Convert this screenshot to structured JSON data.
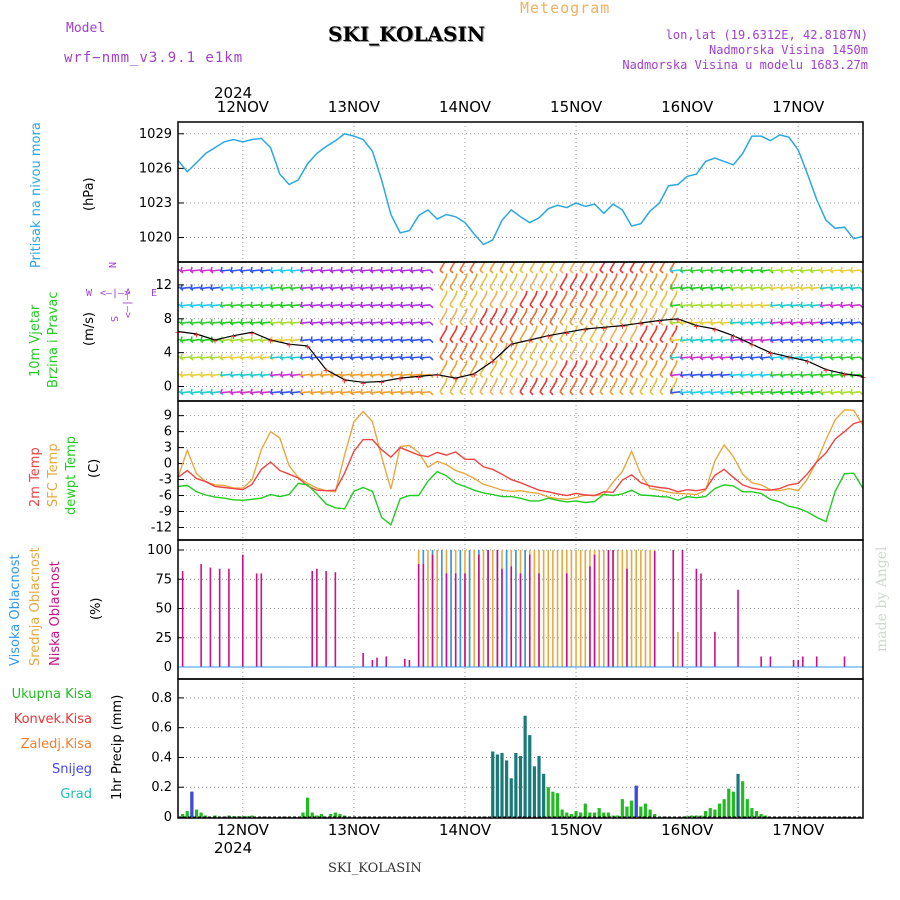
{
  "header": {
    "title": "SKI_KOLASIN",
    "meteogram": "Meteogram",
    "model_label": "Model",
    "model_value": "wrf−nmm_v3.9.1  e1km",
    "lonlat": "lon,lat (19.6312E, 42.8187N)",
    "elevation": "Nadmorska Visina 1450m",
    "model_elevation": "Nadmorska Visina u modelu 1683.27m",
    "credit": "made by Angel",
    "footer": "SKI_KOLASIN"
  },
  "time_axis": {
    "year": "2024",
    "dates": [
      "12NOV",
      "13NOV",
      "14NOV",
      "15NOV",
      "16NOV",
      "17NOV"
    ]
  },
  "panel_labels": {
    "pressure": [
      "Pritisak na nivou mora",
      "(hPa)"
    ],
    "wind": [
      "10m Vjetar",
      "Brzina i Pravac",
      "(m/s)"
    ],
    "compass": {
      "n": "N",
      "s": "S",
      "e": "E",
      "w": "W",
      "arrow": "<—|—>"
    },
    "temp": [
      "2m Temp",
      "SFC Temp",
      "dewpt Temp",
      "(C)"
    ],
    "cloud": [
      "Visoka Oblacnost",
      "Srednja Oblacnost",
      "Niska Oblacnost",
      "(%)"
    ],
    "precip": [
      "Ukupna Kisa",
      "Konvek.Kisa",
      "Zaledj.Kisa",
      "Snijeg",
      "Grad",
      "1hr Precip (mm)"
    ]
  },
  "colors": {
    "pressure": "#2aa8e0",
    "temp2m": "#ee4444",
    "sfc": "#e8a840",
    "dewpt": "#22cc22",
    "high_cloud": "#3399ee",
    "mid_cloud": "#e8a840",
    "low_cloud": "#cc1188",
    "total_rain": "#22bb22",
    "conv_rain": "#ee3333",
    "frz_rain": "#f08030",
    "snow": "#4444ee",
    "hail": "#22bbbb",
    "purple_text": "#a040d0"
  },
  "chart_data": [
    {
      "type": "line",
      "name": "pressure",
      "ylabel": "Pritisak na nivou mora (hPa)",
      "yticks": [
        1020,
        1023,
        1026,
        1029
      ],
      "ylim": [
        1018.4,
        1029.5
      ],
      "x_hours": [
        0,
        2,
        4,
        6,
        8,
        10,
        12,
        14,
        16,
        18,
        20,
        22,
        24,
        26,
        28,
        30,
        32,
        34,
        36,
        38,
        40,
        42,
        44,
        46,
        48,
        50,
        52,
        54,
        56,
        58,
        60,
        62,
        64,
        66,
        68,
        70,
        72,
        74,
        76,
        78,
        80,
        82,
        84,
        86,
        88,
        90,
        92,
        94,
        96,
        98,
        100,
        102,
        104,
        106,
        108,
        110,
        112,
        114,
        116,
        118,
        120,
        122,
        124,
        126,
        128,
        130,
        132,
        134,
        136,
        138,
        140,
        142,
        144,
        146,
        148
      ],
      "series": [
        {
          "values": [
            1026.7,
            1025.7,
            1026.5,
            1027.3,
            1027.8,
            1028.3,
            1028.5,
            1028.3,
            1028.5,
            1028.6,
            1027.8,
            1025.5,
            1024.6,
            1025.0,
            1026.4,
            1027.3,
            1027.9,
            1028.4,
            1029.0,
            1028.8,
            1028.5,
            1027.5,
            1025.0,
            1022.0,
            1020.4,
            1020.6,
            1021.9,
            1022.4,
            1021.6,
            1022.0,
            1021.8,
            1021.3,
            1020.3,
            1019.4,
            1019.8,
            1021.5,
            1022.4,
            1021.8,
            1021.3,
            1021.7,
            1022.5,
            1022.8,
            1022.6,
            1023.0,
            1022.7,
            1022.9,
            1022.1,
            1022.9,
            1022.4,
            1021.0,
            1021.2,
            1022.3,
            1023.0,
            1024.5,
            1024.6,
            1025.3,
            1025.5,
            1026.6,
            1026.9,
            1026.6,
            1026.3,
            1027.3,
            1028.8,
            1028.8,
            1028.4,
            1028.9,
            1028.7,
            1027.6,
            1025.5,
            1023.3,
            1021.5,
            1020.8,
            1020.9,
            1019.9,
            1020.1
          ]
        }
      ]
    },
    {
      "type": "line",
      "name": "wind",
      "ylabel": "10m Vjetar Brzina i Pravac (m/s)",
      "yticks": [
        0,
        4,
        8,
        12
      ],
      "ylim": [
        -1,
        14
      ],
      "x_hours": [
        0,
        4,
        8,
        12,
        16,
        20,
        24,
        28,
        32,
        36,
        40,
        44,
        48,
        52,
        56,
        60,
        64,
        68,
        72,
        76,
        80,
        84,
        88,
        92,
        96,
        100,
        104,
        108,
        112,
        116,
        120,
        124,
        128,
        132,
        136,
        140,
        144,
        148
      ],
      "series": [
        {
          "name": "wind speed",
          "values": [
            6.5,
            6.2,
            5.5,
            6.0,
            6.4,
            5.5,
            5.0,
            4.8,
            2.0,
            0.8,
            0.5,
            0.6,
            1.0,
            1.2,
            1.4,
            1.0,
            1.5,
            3.0,
            5.0,
            5.5,
            6.0,
            6.4,
            6.8,
            7.0,
            7.2,
            7.5,
            7.8,
            8.0,
            7.2,
            6.8,
            6.0,
            5.0,
            4.0,
            3.5,
            3.0,
            2.0,
            1.5,
            1.2
          ]
        }
      ]
    },
    {
      "type": "line",
      "name": "temperature",
      "ylabel": "(C)",
      "yticks": [
        -12,
        -9,
        -6,
        -3,
        0,
        3,
        6,
        9
      ],
      "ylim": [
        -13.6,
        11
      ],
      "x_hours": [
        0,
        2,
        4,
        6,
        8,
        10,
        12,
        14,
        16,
        18,
        20,
        22,
        24,
        26,
        28,
        30,
        32,
        34,
        36,
        38,
        40,
        42,
        44,
        46,
        48,
        50,
        52,
        54,
        56,
        58,
        60,
        62,
        64,
        66,
        68,
        70,
        72,
        74,
        76,
        78,
        80,
        82,
        84,
        86,
        88,
        90,
        92,
        94,
        96,
        98,
        100,
        102,
        104,
        106,
        108,
        110,
        112,
        114,
        116,
        118,
        120,
        122,
        124,
        126,
        128,
        130,
        132,
        134,
        136,
        138,
        140,
        142,
        144,
        146,
        148
      ],
      "series": [
        {
          "name": "2m Temp",
          "values": [
            -2.6,
            -1.3,
            -2.8,
            -3.4,
            -4.3,
            -4.5,
            -4.7,
            -4.9,
            -3.9,
            -1.1,
            0.3,
            -1.3,
            -2.0,
            -2.7,
            -4.2,
            -5.0,
            -5.1,
            -5.0,
            -1.8,
            2.3,
            4.5,
            4.5,
            2.6,
            1.2,
            3.0,
            2.3,
            1.6,
            1.3,
            2.1,
            1.6,
            2.2,
            0.8,
            0.8,
            -0.6,
            -1.1,
            -2.0,
            -3.0,
            -3.6,
            -4.3,
            -5.0,
            -5.3,
            -5.7,
            -6.0,
            -5.6,
            -5.9,
            -6.0,
            -5.3,
            -5.4,
            -3.1,
            -2.1,
            -3.6,
            -4.2,
            -4.5,
            -4.7,
            -5.3,
            -4.9,
            -5.1,
            -4.8,
            -2.2,
            -1.1,
            -2.6,
            -4.0,
            -4.6,
            -4.9,
            -5.0,
            -4.7,
            -4.0,
            -3.7,
            -1.9,
            0.3,
            2.0,
            4.6,
            6.0,
            7.5,
            8.0
          ]
        },
        {
          "name": "SFC Temp",
          "values": [
            -2.6,
            2.5,
            -1.9,
            -3.4,
            -4.0,
            -4.1,
            -4.6,
            -4.6,
            -3.0,
            2.6,
            6.0,
            4.8,
            -0.4,
            -2.6,
            -3.7,
            -4.6,
            -5.1,
            -5.3,
            1.6,
            7.8,
            9.8,
            7.9,
            1.3,
            -4.8,
            3.2,
            3.4,
            2.1,
            -0.7,
            0.4,
            -0.2,
            -1.3,
            -1.9,
            -2.8,
            -3.9,
            -4.4,
            -5.0,
            -5.2,
            -5.1,
            -5.4,
            -5.6,
            -6.3,
            -6.6,
            -6.7,
            -6.4,
            -5.9,
            -6.0,
            -5.8,
            -3.5,
            -1.5,
            2.3,
            -2.0,
            -4.7,
            -5.0,
            -5.4,
            -5.6,
            -5.7,
            -5.8,
            -5.0,
            0.5,
            3.5,
            1.3,
            -2.0,
            -3.6,
            -4.0,
            -4.9,
            -5.1,
            -4.7,
            -5.1,
            -2.9,
            0.4,
            4.5,
            8.2,
            10.1,
            10.0,
            7.2
          ]
        },
        {
          "name": "dewpt Temp",
          "values": [
            -4.3,
            -4.1,
            -5.3,
            -5.9,
            -6.3,
            -6.5,
            -6.8,
            -6.9,
            -6.7,
            -6.5,
            -5.8,
            -6.2,
            -5.8,
            -3.7,
            -4.0,
            -5.7,
            -7.6,
            -8.3,
            -8.5,
            -5.2,
            -4.5,
            -5.2,
            -10.1,
            -11.5,
            -6.6,
            -6.0,
            -6.0,
            -3.3,
            -1.5,
            -2.3,
            -3.7,
            -4.3,
            -5.0,
            -5.5,
            -5.8,
            -6.2,
            -6.2,
            -6.5,
            -7.0,
            -7.0,
            -6.5,
            -6.9,
            -7.2,
            -7.0,
            -7.3,
            -7.1,
            -5.8,
            -6.0,
            -5.7,
            -5.0,
            -5.9,
            -6.0,
            -6.2,
            -6.3,
            -6.9,
            -6.2,
            -6.4,
            -6.2,
            -4.7,
            -4.0,
            -4.2,
            -5.3,
            -5.3,
            -5.6,
            -6.7,
            -7.2,
            -8.0,
            -8.4,
            -9.1,
            -10.1,
            -10.9,
            -5.2,
            -1.9,
            -1.8,
            -4.7
          ]
        }
      ]
    },
    {
      "type": "bar",
      "name": "clouds",
      "ylabel": "(%)",
      "yticks": [
        0,
        25,
        50,
        75,
        100
      ],
      "ylim": [
        0,
        100
      ],
      "series": [
        {
          "name": "Niska Oblacnost",
          "x_hours": [
            1,
            5,
            7,
            9,
            11,
            14,
            17,
            18,
            29,
            30,
            32,
            34,
            40,
            42,
            43,
            45,
            49,
            50,
            52,
            53,
            55,
            58,
            60,
            62,
            65,
            67,
            69,
            70,
            72,
            74,
            76,
            78,
            84,
            89,
            90,
            93,
            94,
            97,
            103,
            107,
            109,
            112,
            113,
            116,
            121,
            126,
            128,
            133,
            134,
            135,
            138,
            144
          ],
          "values": [
            82,
            88,
            85,
            84,
            84,
            96,
            80,
            80,
            82,
            84,
            82,
            81,
            12,
            6,
            8,
            9,
            7,
            6,
            88,
            88,
            96,
            80,
            80,
            80,
            96,
            100,
            100,
            84,
            86,
            80,
            96,
            80,
            80,
            86,
            96,
            100,
            100,
            84,
            99,
            100,
            100,
            84,
            80,
            30,
            66,
            9,
            9,
            6,
            6,
            9,
            9,
            9
          ]
        },
        {
          "name": "Srednja Oblacnost",
          "x_hours": [
            52,
            53,
            54,
            55,
            56,
            57,
            58,
            59,
            60,
            61,
            62,
            63,
            64,
            65,
            66,
            67,
            68,
            69,
            70,
            71,
            72,
            73,
            74,
            75,
            76,
            77,
            78,
            79,
            80,
            81,
            82,
            83,
            84,
            85,
            86,
            87,
            88,
            89,
            90,
            91,
            92,
            93,
            94,
            95,
            96,
            97,
            98,
            99,
            100,
            101,
            102,
            103,
            108
          ],
          "values": [
            100,
            100,
            100,
            100,
            100,
            100,
            100,
            100,
            100,
            100,
            100,
            100,
            100,
            100,
            100,
            100,
            100,
            100,
            100,
            100,
            100,
            100,
            100,
            100,
            100,
            100,
            100,
            100,
            100,
            100,
            100,
            100,
            100,
            100,
            100,
            100,
            100,
            100,
            100,
            100,
            100,
            100,
            100,
            100,
            100,
            100,
            100,
            100,
            100,
            100,
            100,
            100,
            30
          ]
        },
        {
          "name": "Visoka Oblacnost",
          "x_hours": [
            53,
            55,
            57,
            59,
            61,
            63,
            65,
            67,
            69,
            71,
            73,
            75
          ],
          "values": [
            100,
            100,
            100,
            100,
            100,
            100,
            100,
            100,
            100,
            100,
            100,
            100
          ]
        }
      ]
    },
    {
      "type": "bar",
      "name": "precipitation",
      "ylabel": "1hr Precip (mm)",
      "yticks": [
        0,
        0.2,
        0.4,
        0.6,
        0.8
      ],
      "ylim": [
        0,
        0.9
      ],
      "x_hours": [
        1,
        2,
        3,
        4,
        5,
        6,
        8,
        11,
        12,
        13,
        14,
        15,
        16,
        27,
        28,
        29,
        30,
        31,
        33,
        34,
        35,
        36,
        68,
        69,
        70,
        71,
        72,
        73,
        74,
        75,
        76,
        77,
        78,
        79,
        80,
        81,
        82,
        83,
        84,
        85,
        86,
        87,
        88,
        89,
        90,
        91,
        92,
        93,
        94,
        95,
        96,
        97,
        98,
        99,
        100,
        101,
        102,
        103,
        110,
        111,
        112,
        113,
        114,
        115,
        116,
        117,
        118,
        119,
        120,
        121,
        122,
        123,
        124,
        125,
        126,
        127
      ],
      "series": [
        {
          "name": "Ukupna Kisa",
          "values": [
            0.02,
            0.04,
            0.17,
            0.05,
            0.03,
            0.01,
            0.01,
            0.01,
            0.005,
            0.005,
            0.005,
            0.005,
            0.01,
            0.03,
            0.13,
            0.03,
            0.01,
            0.02,
            0.02,
            0.03,
            0.02,
            0.01,
            0.44,
            0.42,
            0.43,
            0.38,
            0.26,
            0.43,
            0.41,
            0.68,
            0.55,
            0.34,
            0.41,
            0.29,
            0.2,
            0.17,
            0.16,
            0.05,
            0.03,
            0.02,
            0.04,
            0.03,
            0.09,
            0.03,
            0.03,
            0.06,
            0.03,
            0.03,
            0.01,
            0.01,
            0.12,
            0.07,
            0.11,
            0.21,
            0.07,
            0.09,
            0.05,
            0.02,
            0.005,
            0.01,
            0.01,
            0.01,
            0.04,
            0.06,
            0.05,
            0.09,
            0.12,
            0.19,
            0.17,
            0.29,
            0.24,
            0.12,
            0.06,
            0.04,
            0.02,
            0.01
          ]
        },
        {
          "name": "Snijeg",
          "values": [
            0,
            0,
            0.17,
            0,
            0,
            0,
            0,
            0,
            0,
            0,
            0,
            0,
            0,
            0,
            0,
            0,
            0,
            0,
            0,
            0,
            0,
            0,
            0,
            0,
            0,
            0,
            0,
            0,
            0,
            0,
            0,
            0,
            0,
            0,
            0,
            0,
            0,
            0,
            0,
            0,
            0,
            0,
            0,
            0,
            0,
            0,
            0,
            0,
            0,
            0,
            0,
            0,
            0,
            0.21,
            0,
            0,
            0,
            0,
            0,
            0,
            0,
            0,
            0,
            0,
            0,
            0,
            0,
            0,
            0,
            0,
            0,
            0,
            0,
            0,
            0,
            0
          ]
        }
      ]
    }
  ]
}
